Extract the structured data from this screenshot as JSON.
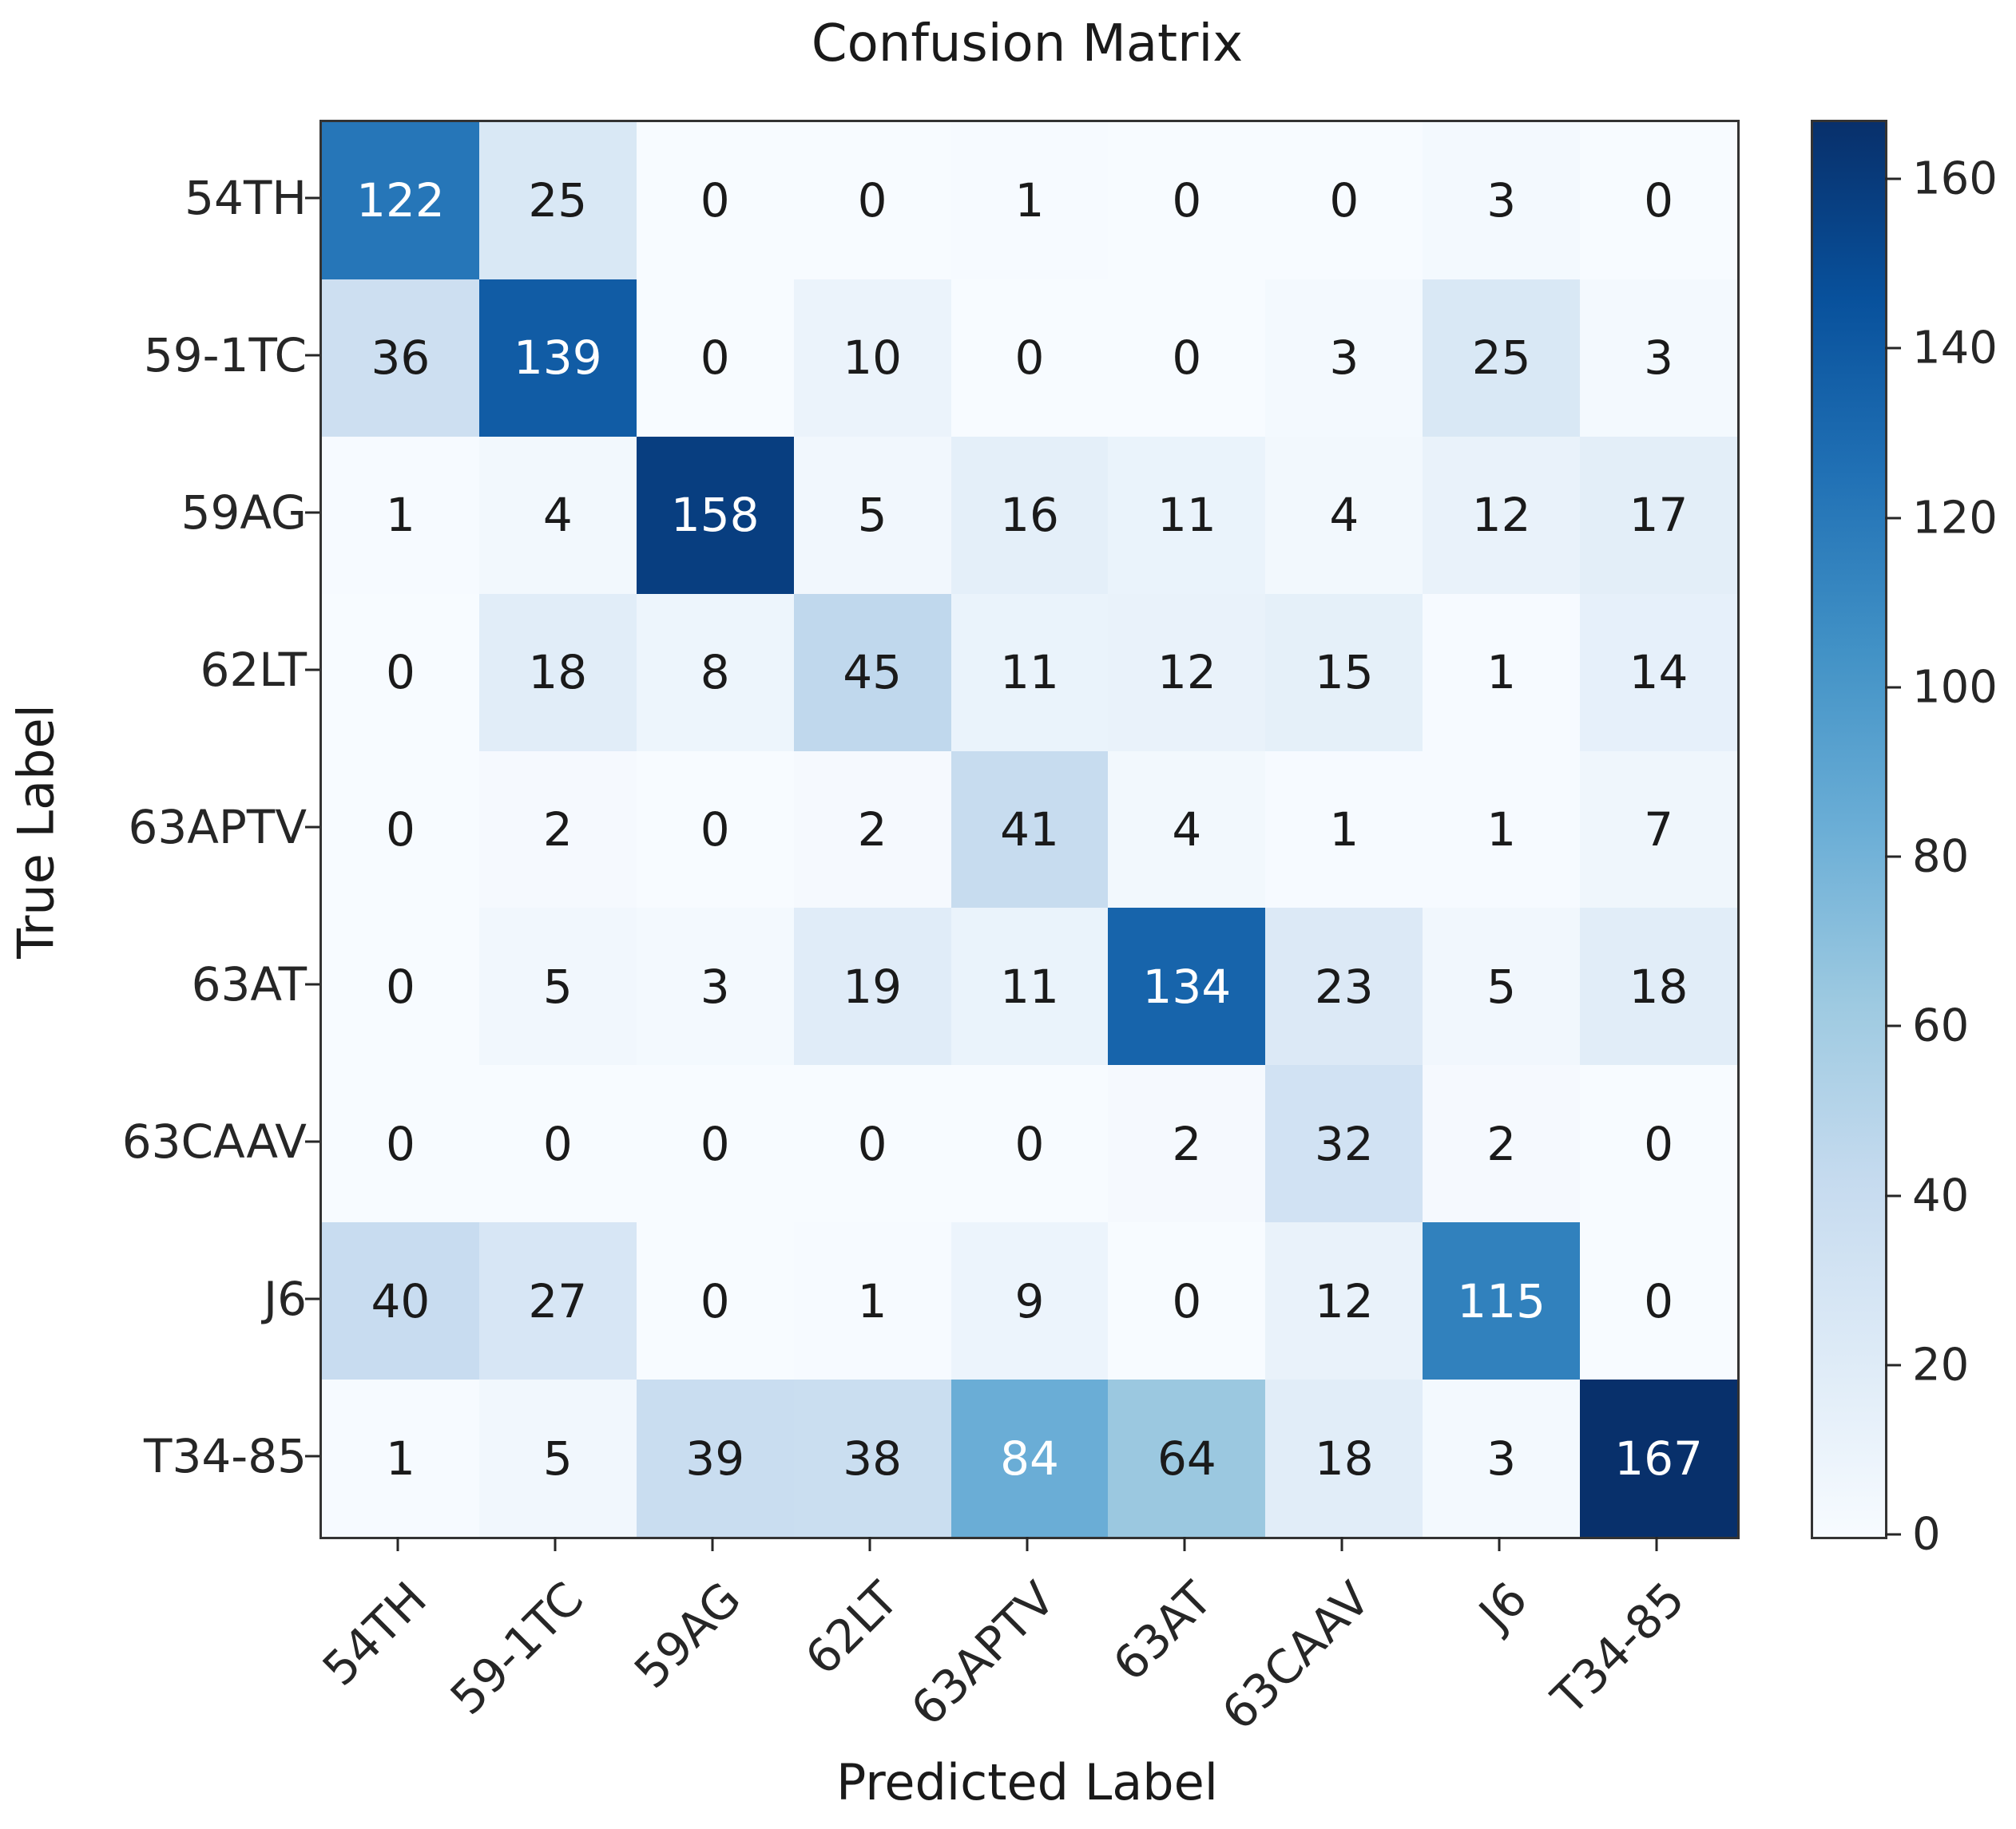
{
  "title": "Confusion Matrix",
  "x_axis_title": "Predicted Label",
  "y_axis_title": "True Label",
  "chart_data": {
    "type": "heatmap",
    "title": "Confusion Matrix",
    "xlabel": "Predicted Label",
    "ylabel": "True Label",
    "x_categories": [
      "54TH",
      "59-1TC",
      "59AG",
      "62LT",
      "63APTV",
      "63AT",
      "63CAAV",
      "J6",
      "T34-85"
    ],
    "y_categories": [
      "54TH",
      "59-1TC",
      "59AG",
      "62LT",
      "63APTV",
      "63AT",
      "63CAAV",
      "J6",
      "T34-85"
    ],
    "rows": [
      [
        122,
        25,
        0,
        0,
        1,
        0,
        0,
        3,
        0
      ],
      [
        36,
        139,
        0,
        10,
        0,
        0,
        3,
        25,
        3
      ],
      [
        1,
        4,
        158,
        5,
        16,
        11,
        4,
        12,
        17
      ],
      [
        0,
        18,
        8,
        45,
        11,
        12,
        15,
        1,
        14
      ],
      [
        0,
        2,
        0,
        2,
        41,
        4,
        1,
        1,
        7
      ],
      [
        0,
        5,
        3,
        19,
        11,
        134,
        23,
        5,
        18
      ],
      [
        0,
        0,
        0,
        0,
        0,
        2,
        32,
        2,
        0
      ],
      [
        40,
        27,
        0,
        1,
        9,
        0,
        12,
        115,
        0
      ],
      [
        1,
        5,
        39,
        38,
        84,
        64,
        18,
        3,
        167
      ]
    ],
    "colormap": "Blues",
    "vmin": 0,
    "vmax": 167,
    "colorbar_ticks": [
      0,
      20,
      40,
      60,
      80,
      100,
      120,
      140,
      160
    ],
    "colorbar_position": "right",
    "x_tick_rotation_deg": 45,
    "grid": false,
    "colors": {
      "min_color": "#f7fbff",
      "max_color": "#08306b",
      "cell_text_dark": "#1a1a1a",
      "cell_text_light": "#ffffff",
      "spine": "#333333"
    }
  }
}
